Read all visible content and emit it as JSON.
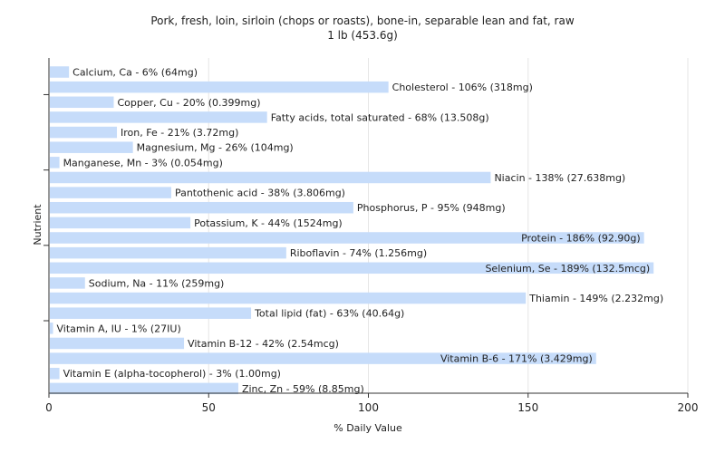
{
  "chart_data": {
    "type": "bar",
    "orientation": "horizontal",
    "title": "Pork, fresh, loin, sirloin (chops or roasts), bone-in, separable lean and fat, raw",
    "subtitle": "1 lb (453.6g)",
    "xlabel": "% Daily Value",
    "ylabel": "Nutrient",
    "xlim": [
      0,
      200
    ],
    "xticks": [
      "0",
      "50",
      "100",
      "150",
      "200"
    ],
    "grid": true,
    "bar_color": "#c6dcfa",
    "categories": [
      "Calcium, Ca",
      "Cholesterol",
      "Copper, Cu",
      "Fatty acids, total saturated",
      "Iron, Fe",
      "Magnesium, Mg",
      "Manganese, Mn",
      "Niacin",
      "Pantothenic acid",
      "Phosphorus, P",
      "Potassium, K",
      "Protein",
      "Riboflavin",
      "Selenium, Se",
      "Sodium, Na",
      "Thiamin",
      "Total lipid (fat)",
      "Vitamin A, IU",
      "Vitamin B-12",
      "Vitamin B-6",
      "Vitamin E (alpha-tocopherol)",
      "Zinc, Zn"
    ],
    "values": [
      6,
      106,
      20,
      68,
      21,
      26,
      3,
      138,
      38,
      95,
      44,
      186,
      74,
      189,
      11,
      149,
      63,
      1,
      42,
      171,
      3,
      59
    ],
    "labels": [
      "Calcium, Ca - 6% (64mg)",
      "Cholesterol - 106% (318mg)",
      "Copper, Cu - 20% (0.399mg)",
      "Fatty acids, total saturated - 68% (13.508g)",
      "Iron, Fe - 21% (3.72mg)",
      "Magnesium, Mg - 26% (104mg)",
      "Manganese, Mn - 3% (0.054mg)",
      "Niacin - 138% (27.638mg)",
      "Pantothenic acid - 38% (3.806mg)",
      "Phosphorus, P - 95% (948mg)",
      "Potassium, K - 44% (1524mg)",
      "Protein - 186% (92.90g)",
      "Riboflavin - 74% (1.256mg)",
      "Selenium, Se - 189% (132.5mcg)",
      "Sodium, Na - 11% (259mg)",
      "Thiamin - 149% (2.232mg)",
      "Total lipid (fat) - 63% (40.64g)",
      "Vitamin A, IU - 1% (27IU)",
      "Vitamin B-12 - 42% (2.54mcg)",
      "Vitamin B-6 - 171% (3.429mg)",
      "Vitamin E (alpha-tocopherol) - 3% (1.00mg)",
      "Zinc, Zn - 59% (8.85mg)"
    ]
  }
}
